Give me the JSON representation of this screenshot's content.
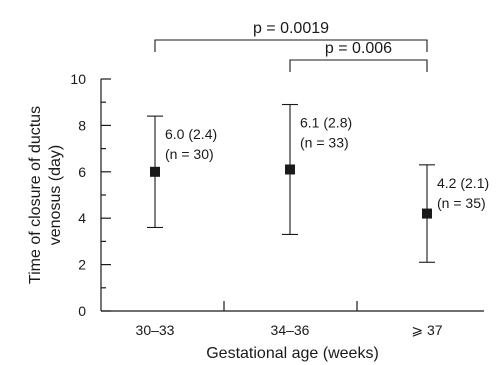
{
  "chart_data": {
    "type": "scatter",
    "title": "",
    "xlabel": "Gestational age (weeks)",
    "ylabel_lines": [
      "Time of closure of ductus",
      "venosus (day)"
    ],
    "ylim": [
      0,
      10
    ],
    "yticks": [
      0,
      2,
      4,
      6,
      8,
      10
    ],
    "minor_yticks": [
      1,
      3,
      5,
      7,
      9
    ],
    "categories": [
      "30–33",
      "34–36",
      "⩾ 37"
    ],
    "series": [
      {
        "points": [
          {
            "category": "30–33",
            "mean": 6.0,
            "err_low": 3.6,
            "err_high": 8.4,
            "label_lines": [
              "6.0 (2.4)",
              "(n = 30)"
            ]
          },
          {
            "category": "34–36",
            "mean": 6.1,
            "err_low": 3.3,
            "err_high": 8.9,
            "label_lines": [
              "6.1 (2.8)",
              "(n = 33)"
            ]
          },
          {
            "category": "⩾ 37",
            "mean": 4.2,
            "err_low": 2.1,
            "err_high": 6.3,
            "label_lines": [
              "4.2 (2.1)",
              "(n = 35)"
            ]
          }
        ]
      }
    ],
    "annotations": [
      {
        "from": 0,
        "to": 2,
        "text": "p = 0.0019"
      },
      {
        "from": 1,
        "to": 2,
        "text": "p = 0.006"
      }
    ],
    "grid": false,
    "legend": "none"
  }
}
